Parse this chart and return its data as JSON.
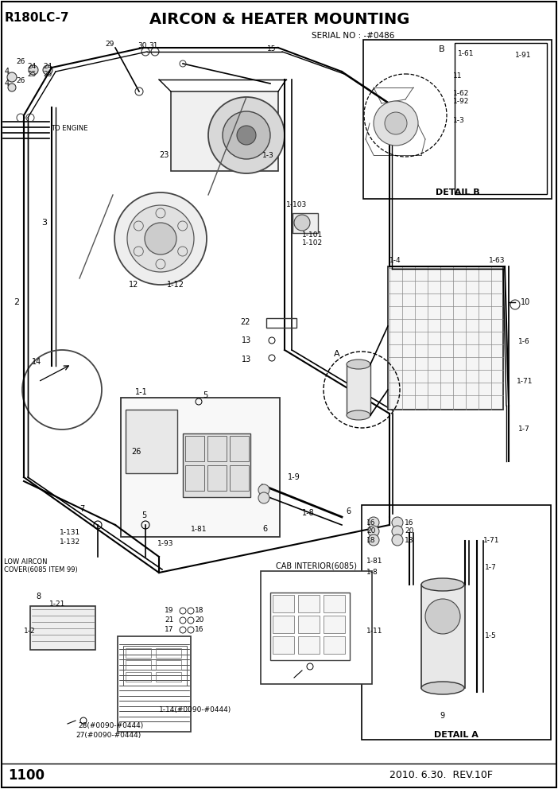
{
  "title": "AIRCON & HEATER MOUNTING",
  "model": "R180LC-7",
  "serial": "SERIAL NO : -#0486",
  "page": "1100",
  "date": "2010. 6.30.  REV.10F",
  "bg_color": "#ffffff",
  "line_color": "#000000",
  "detail_b_label": "DETAIL B",
  "detail_a_label": "DETAIL A",
  "to_engine": "TO ENGINE",
  "cab_interior": "CAB INTERIOR(6085)",
  "low_aircon": "LOW AIRCON\nCOVER(6085 ITEM 99)"
}
